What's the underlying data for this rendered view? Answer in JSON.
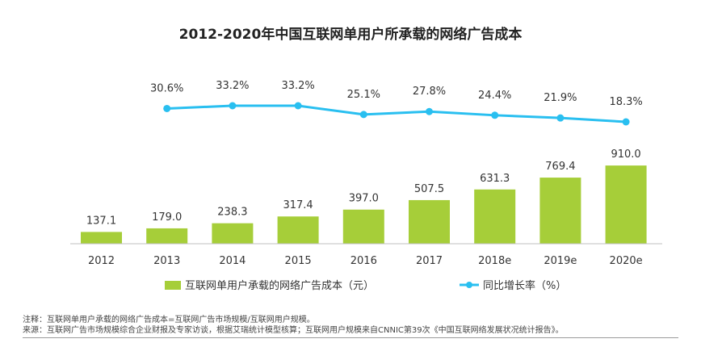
{
  "chart_data": {
    "type": "bar",
    "title": "2012-2020年中国互联网单用户所承载的网络广告成本",
    "categories": [
      "2012",
      "2013",
      "2014",
      "2015",
      "2016",
      "2017",
      "2018e",
      "2019e",
      "2020e"
    ],
    "series": [
      {
        "name": "互联网单用户承载的网络广告成本（元）",
        "type": "bar",
        "values": [
          137.1,
          179.0,
          238.3,
          317.4,
          397.0,
          507.5,
          631.3,
          769.4,
          910.0
        ],
        "labels": [
          "137.1",
          "179.0",
          "238.3",
          "317.4",
          "397.0",
          "507.5",
          "631.3",
          "769.4",
          "910.0"
        ],
        "color": "#a6ce39"
      },
      {
        "name": "同比增长率（%）",
        "type": "line",
        "values": [
          null,
          30.6,
          33.2,
          33.2,
          25.1,
          27.8,
          24.4,
          21.9,
          18.3
        ],
        "labels": [
          "",
          "30.6%",
          "33.2%",
          "33.2%",
          "25.1%",
          "27.8%",
          "24.4%",
          "21.9%",
          "18.3%"
        ],
        "color": "#29bff0"
      }
    ],
    "grid": false,
    "legend_position": "bottom"
  },
  "notes": [
    "注释：互联网单用户承载的网络广告成本=互联网广告市场规模/互联网用户规模。",
    "来源：互联网广告市场规模综合企业财报及专家访谈，根据艾瑞统计模型核算；互联网用户规模来自CNNIC第39次《中国互联网络发展状况统计报告》。"
  ]
}
